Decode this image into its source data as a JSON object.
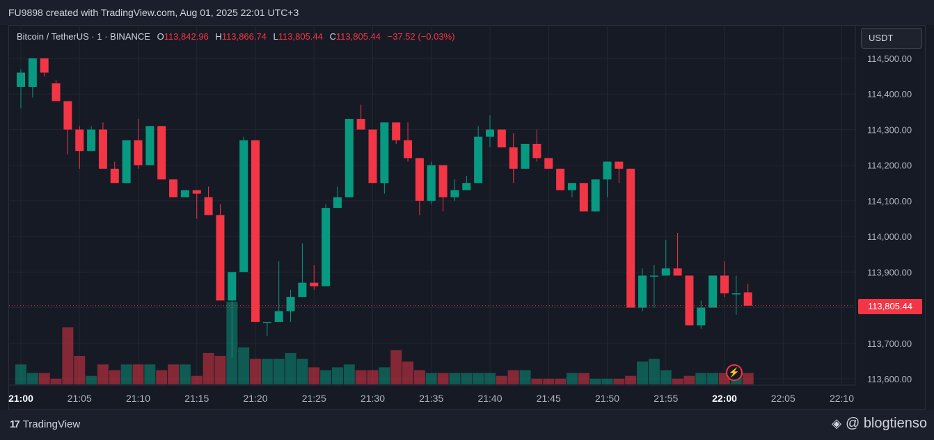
{
  "header": {
    "caption": "FU9898 created with TradingView.com, Aug 01, 2025 22:01 UTC+3"
  },
  "legend": {
    "symbol": "Bitcoin / TetherUS · 1 · BINANCE",
    "o_label": "O",
    "o_value": "113,842.96",
    "h_label": "H",
    "h_value": "113,866.74",
    "l_label": "L",
    "l_value": "113,805.44",
    "c_label": "C",
    "c_value": "113,805.44",
    "change": "−37.52 (−0.03%)"
  },
  "currency_button": "USDT",
  "last_price_label": "113,805.44",
  "footer": {
    "brand": "TradingView",
    "credit": "@ blogtienso"
  },
  "colors": {
    "up": "#089981",
    "down": "#f23645",
    "background": "#161a25",
    "grid": "#222631"
  },
  "chart_data": {
    "type": "candlestick",
    "timeframe": "1 minute",
    "y_ticks": [
      113600,
      113700,
      113800,
      113900,
      114000,
      114100,
      114200,
      114300,
      114400,
      114500
    ],
    "y_tick_labels": [
      "113,600.00",
      "113,700.00",
      "113,800.00",
      "113,900.00",
      "114,000.00",
      "114,100.00",
      "114,200.00",
      "114,300.00",
      "114,400.00",
      "114,500.00"
    ],
    "ylim": [
      113580,
      114520
    ],
    "x_tick_labels": [
      "21:00",
      "21:05",
      "21:10",
      "21:15",
      "21:20",
      "21:25",
      "21:30",
      "21:35",
      "21:40",
      "21:45",
      "21:50",
      "21:55",
      "22:00",
      "22:05",
      "22:10"
    ],
    "bold_x_ticks": [
      "21:00",
      "22:00"
    ],
    "last_price": 113805.44,
    "candles": [
      {
        "t": "21:00",
        "o": 114420,
        "h": 114470,
        "l": 114360,
        "c": 114460
      },
      {
        "t": "21:01",
        "o": 114420,
        "h": 114500,
        "l": 114390,
        "c": 114500
      },
      {
        "t": "21:02",
        "o": 114500,
        "h": 114500,
        "l": 114450,
        "c": 114460
      },
      {
        "t": "21:03",
        "o": 114430,
        "h": 114440,
        "l": 114380,
        "c": 114380
      },
      {
        "t": "21:04",
        "o": 114380,
        "h": 114380,
        "l": 114230,
        "c": 114300
      },
      {
        "t": "21:05",
        "o": 114300,
        "h": 114310,
        "l": 114190,
        "c": 114240
      },
      {
        "t": "21:06",
        "o": 114240,
        "h": 114310,
        "l": 114240,
        "c": 114300
      },
      {
        "t": "21:07",
        "o": 114300,
        "h": 114320,
        "l": 114190,
        "c": 114190
      },
      {
        "t": "21:08",
        "o": 114190,
        "h": 114210,
        "l": 114150,
        "c": 114150
      },
      {
        "t": "21:09",
        "o": 114150,
        "h": 114270,
        "l": 114150,
        "c": 114270
      },
      {
        "t": "21:10",
        "o": 114270,
        "h": 114330,
        "l": 114190,
        "c": 114200
      },
      {
        "t": "21:11",
        "o": 114200,
        "h": 114310,
        "l": 114200,
        "c": 114310
      },
      {
        "t": "21:12",
        "o": 114310,
        "h": 114310,
        "l": 114160,
        "c": 114160
      },
      {
        "t": "21:13",
        "o": 114160,
        "h": 114160,
        "l": 114110,
        "c": 114110
      },
      {
        "t": "21:14",
        "o": 114110,
        "h": 114130,
        "l": 114110,
        "c": 114130
      },
      {
        "t": "21:15",
        "o": 114130,
        "h": 114130,
        "l": 114050,
        "c": 114120
      },
      {
        "t": "21:16",
        "o": 114110,
        "h": 114140,
        "l": 114060,
        "c": 114060
      },
      {
        "t": "21:17",
        "o": 114060,
        "h": 114090,
        "l": 113820,
        "c": 113820
      },
      {
        "t": "21:18",
        "o": 113820,
        "h": 113900,
        "l": 113660,
        "c": 113900
      },
      {
        "t": "21:19",
        "o": 113900,
        "h": 114280,
        "l": 113900,
        "c": 114270
      },
      {
        "t": "21:20",
        "o": 114270,
        "h": 114270,
        "l": 113760,
        "c": 113760
      },
      {
        "t": "21:21",
        "o": 113760,
        "h": 113760,
        "l": 113720,
        "c": 113760
      },
      {
        "t": "21:22",
        "o": 113760,
        "h": 113930,
        "l": 113760,
        "c": 113790
      },
      {
        "t": "21:23",
        "o": 113790,
        "h": 113850,
        "l": 113760,
        "c": 113830
      },
      {
        "t": "21:24",
        "o": 113830,
        "h": 113980,
        "l": 113830,
        "c": 113870
      },
      {
        "t": "21:25",
        "o": 113870,
        "h": 113920,
        "l": 113850,
        "c": 113860
      },
      {
        "t": "21:26",
        "o": 113860,
        "h": 114090,
        "l": 113860,
        "c": 114080
      },
      {
        "t": "21:27",
        "o": 114080,
        "h": 114140,
        "l": 114080,
        "c": 114110
      },
      {
        "t": "21:28",
        "o": 114110,
        "h": 114330,
        "l": 114110,
        "c": 114330
      },
      {
        "t": "21:29",
        "o": 114330,
        "h": 114370,
        "l": 114300,
        "c": 114300
      },
      {
        "t": "21:30",
        "o": 114300,
        "h": 114300,
        "l": 114150,
        "c": 114150
      },
      {
        "t": "21:31",
        "o": 114150,
        "h": 114320,
        "l": 114120,
        "c": 114320
      },
      {
        "t": "21:32",
        "o": 114320,
        "h": 114320,
        "l": 114260,
        "c": 114270
      },
      {
        "t": "21:33",
        "o": 114270,
        "h": 114320,
        "l": 114210,
        "c": 114220
      },
      {
        "t": "21:34",
        "o": 114220,
        "h": 114220,
        "l": 114060,
        "c": 114100
      },
      {
        "t": "21:35",
        "o": 114100,
        "h": 114210,
        "l": 114090,
        "c": 114200
      },
      {
        "t": "21:36",
        "o": 114200,
        "h": 114200,
        "l": 114070,
        "c": 114110
      },
      {
        "t": "21:37",
        "o": 114110,
        "h": 114160,
        "l": 114100,
        "c": 114130
      },
      {
        "t": "21:38",
        "o": 114130,
        "h": 114170,
        "l": 114130,
        "c": 114150
      },
      {
        "t": "21:39",
        "o": 114150,
        "h": 114310,
        "l": 114150,
        "c": 114280
      },
      {
        "t": "21:40",
        "o": 114280,
        "h": 114340,
        "l": 114250,
        "c": 114300
      },
      {
        "t": "21:41",
        "o": 114300,
        "h": 114300,
        "l": 114250,
        "c": 114250
      },
      {
        "t": "21:42",
        "o": 114250,
        "h": 114290,
        "l": 114150,
        "c": 114190
      },
      {
        "t": "21:43",
        "o": 114190,
        "h": 114260,
        "l": 114190,
        "c": 114260
      },
      {
        "t": "21:44",
        "o": 114260,
        "h": 114300,
        "l": 114210,
        "c": 114220
      },
      {
        "t": "21:45",
        "o": 114220,
        "h": 114220,
        "l": 114190,
        "c": 114190
      },
      {
        "t": "21:46",
        "o": 114190,
        "h": 114190,
        "l": 114130,
        "c": 114130
      },
      {
        "t": "21:47",
        "o": 114130,
        "h": 114150,
        "l": 114110,
        "c": 114150
      },
      {
        "t": "21:48",
        "o": 114150,
        "h": 114150,
        "l": 114070,
        "c": 114070
      },
      {
        "t": "21:49",
        "o": 114070,
        "h": 114160,
        "l": 114070,
        "c": 114160
      },
      {
        "t": "21:50",
        "o": 114160,
        "h": 114210,
        "l": 114110,
        "c": 114210
      },
      {
        "t": "21:51",
        "o": 114210,
        "h": 114210,
        "l": 114150,
        "c": 114190
      },
      {
        "t": "21:52",
        "o": 114190,
        "h": 114190,
        "l": 113800,
        "c": 113800
      },
      {
        "t": "21:53",
        "o": 113800,
        "h": 113910,
        "l": 113790,
        "c": 113890
      },
      {
        "t": "21:54",
        "o": 113890,
        "h": 113920,
        "l": 113800,
        "c": 113890
      },
      {
        "t": "21:55",
        "o": 113890,
        "h": 113990,
        "l": 113890,
        "c": 113910
      },
      {
        "t": "21:56",
        "o": 113910,
        "h": 114010,
        "l": 113890,
        "c": 113890
      },
      {
        "t": "21:57",
        "o": 113890,
        "h": 113890,
        "l": 113750,
        "c": 113750
      },
      {
        "t": "21:58",
        "o": 113750,
        "h": 113820,
        "l": 113740,
        "c": 113800
      },
      {
        "t": "21:59",
        "o": 113800,
        "h": 113890,
        "l": 113800,
        "c": 113890
      },
      {
        "t": "22:00",
        "o": 113890,
        "h": 113930,
        "l": 113830,
        "c": 113840
      },
      {
        "t": "22:01",
        "o": 113840,
        "h": 113890,
        "l": 113780,
        "c": 113840
      },
      {
        "t": "22:02",
        "o": 113842.96,
        "h": 113866.74,
        "l": 113805.44,
        "c": 113805.44
      }
    ],
    "volume_relative": [
      0.35,
      0.2,
      0.2,
      0.1,
      1.0,
      0.5,
      0.15,
      0.35,
      0.25,
      0.35,
      0.35,
      0.35,
      0.25,
      0.35,
      0.35,
      0.15,
      0.55,
      0.5,
      1.45,
      0.65,
      0.45,
      0.45,
      0.45,
      0.55,
      0.45,
      0.3,
      0.25,
      0.3,
      0.35,
      0.25,
      0.25,
      0.3,
      0.6,
      0.4,
      0.25,
      0.2,
      0.2,
      0.2,
      0.2,
      0.2,
      0.2,
      0.15,
      0.25,
      0.25,
      0.1,
      0.1,
      0.1,
      0.2,
      0.2,
      0.1,
      0.1,
      0.1,
      0.15,
      0.4,
      0.45,
      0.25,
      0.1,
      0.15,
      0.2,
      0.2,
      0.2,
      0.2,
      0.2
    ]
  }
}
